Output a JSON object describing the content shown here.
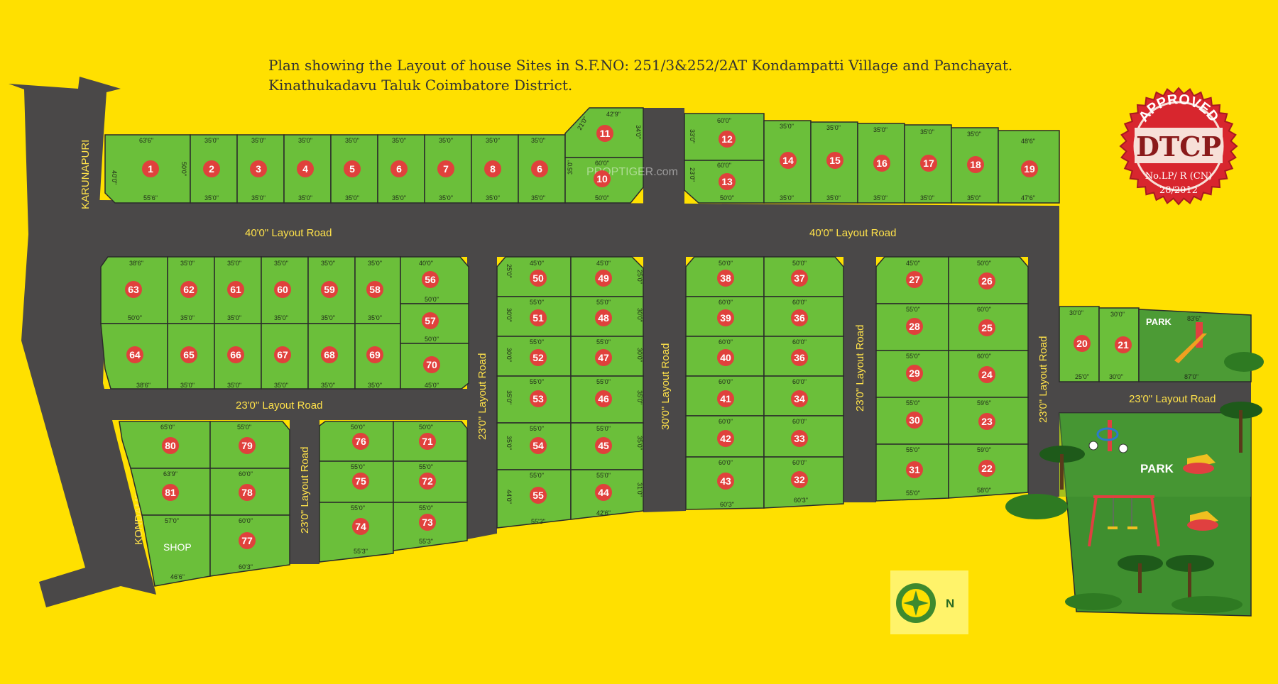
{
  "title": {
    "line1": "Plan showing the Layout of house Sites in S.F.NO: 251/3&252/2AT Kondampatti Village and Panchayat.",
    "line2": "Kinathukadavu Taluk Coimbatore District."
  },
  "seal": {
    "approved": "APPROVED",
    "authority": "DTCP",
    "permit": "No.LP/ R (CN)",
    "year": "28/2012",
    "color": "#D8262E"
  },
  "watermark": "PROPTIGER.com",
  "roads": {
    "karunapuri": "KARUNAPURI",
    "kondampatti": "KONDAMPATTI",
    "main_left": "40'0\" Layout Road",
    "main_right": "40'0\" Layout Road",
    "mid_left": "23'0\" Layout Road",
    "vert_1": "23'0\" Layout Road",
    "vert_2": "23'0\" Layout Road",
    "vert_3": "30'0\" Layout Road",
    "vert_4": "23'0\" Layout Road",
    "vert_5": "23'0\" Layout Road",
    "park_road": "23'0\" Layout Road"
  },
  "shop_label": "SHOP",
  "park_small": "PARK",
  "park_large": "PARK",
  "north": "N",
  "colors": {
    "plot": "#6BBF3A",
    "road": "#4A4848",
    "background": "#FFE000",
    "marker": "#E0413C",
    "park": "#3E8A2E"
  },
  "plots": {
    "top_row": [
      "1",
      "2",
      "3",
      "4",
      "5",
      "6",
      "7",
      "8",
      "6"
    ],
    "plot_11": "11",
    "plot_10": "10",
    "block_a": [
      "12",
      "13"
    ],
    "block_b": [
      "14",
      "15",
      "16",
      "17",
      "18",
      "19"
    ],
    "row_63": [
      "63",
      "62",
      "61",
      "60",
      "59",
      "58"
    ],
    "row_64": [
      "64",
      "65",
      "66",
      "67",
      "68",
      "69"
    ],
    "col_56": [
      "56",
      "57",
      "70"
    ],
    "block_80": [
      "80",
      "79",
      "81",
      "78",
      "77"
    ],
    "block_76": [
      "76",
      "71",
      "75",
      "72",
      "74",
      "73"
    ],
    "block_50": [
      "50",
      "49",
      "51",
      "48",
      "52",
      "47",
      "53",
      "46",
      "54",
      "45",
      "55",
      "44"
    ],
    "block_38": [
      "38",
      "37",
      "39",
      "36",
      "40",
      "36",
      "41",
      "34",
      "42",
      "33",
      "43",
      "32"
    ],
    "block_27": [
      "27",
      "26",
      "28",
      "25",
      "29",
      "24",
      "30",
      "23",
      "31",
      "22"
    ],
    "block_20": [
      "20",
      "21"
    ]
  },
  "dims": {
    "top_row": [
      "63'6\"",
      "35'0\"",
      "35'0\"",
      "35'0\"",
      "35'0\"",
      "35'0\"",
      "35'0\"",
      "35'0\"",
      "35'0\""
    ],
    "top_row_bottom": [
      "55'6\"",
      "35'0\"",
      "35'0\"",
      "35'0\"",
      "35'0\"",
      "35'0\"",
      "35'0\"",
      "35'0\"",
      "35'0\""
    ],
    "p1_left": "40'0\"",
    "p1_right": "50'0\"",
    "p11_top": "42'9\"",
    "p11_left": "21'0\"",
    "p11_right": "34'0\"",
    "p10_top": "60'0\"",
    "p10_bottom": "50'0\"",
    "p10_left": "35'0\"",
    "blk_a_top": "60'0\"",
    "blk_a_mid": "60'0\"",
    "blk_a_bottom": "50'0\"",
    "blk_a_left": "33'0\"",
    "blk_a_left2": "23'0\"",
    "blk_b_top": [
      "35'0\"",
      "35'0\"",
      "35'0\"",
      "35'0\"",
      "35'0\"",
      "48'6\""
    ],
    "blk_b_bottom": [
      "35'0\"",
      "35'0\"",
      "35'0\"",
      "35'0\"",
      "35'0\"",
      "47'6\""
    ],
    "row63_top": [
      "38'6\"",
      "35'0\"",
      "35'0\"",
      "35'0\"",
      "35'0\"",
      "35'0\""
    ],
    "row63_mid": [
      "50'0\"",
      "35'0\"",
      "35'0\"",
      "35'0\"",
      "35'0\"",
      "35'0\""
    ],
    "row64_bottom": [
      "38'6\"",
      "35'0\"",
      "35'0\"",
      "35'0\"",
      "35'0\"",
      "35'0\""
    ],
    "col56": [
      "40'0\"",
      "50'0\"",
      "50'0\"",
      "45'0\""
    ],
    "blk80": [
      "65'0\"",
      "55'0\"",
      "63'9\"",
      "60'0\"",
      "57'0\"",
      "60'0\"",
      "46'6\"",
      "60'3\""
    ],
    "blk76": [
      "50'0\"",
      "50'0\"",
      "55'0\"",
      "55'0\"",
      "55'0\"",
      "55'0\"",
      "55'3\"",
      "55'3\""
    ],
    "blk50": [
      "45'0\"",
      "45'0\"",
      "55'0\"",
      "55'0\"",
      "55'0\"",
      "55'0\"",
      "55'0\"",
      "55'0\"",
      "55'0\"",
      "55'0\"",
      "55'0\"",
      "55'0\"",
      "55'3\"",
      "42'6\""
    ],
    "blk38": [
      "50'0\"",
      "50'0\"",
      "60'0\"",
      "60'0\"",
      "60'0\"",
      "60'0\"",
      "60'0\"",
      "60'0\"",
      "60'0\"",
      "60'0\"",
      "60'0\"",
      "60'0\"",
      "60'3\"",
      "60'3\""
    ],
    "blk27": [
      "45'0\"",
      "50'0\"",
      "55'0\"",
      "60'0\"",
      "55'0\"",
      "60'0\"",
      "55'0\"",
      "59'6\"",
      "55'0\"",
      "59'0\"",
      "55'0\"",
      "58'0\""
    ],
    "blk20": [
      "30'0\"",
      "30'0\"",
      "83'6\"",
      "25'0\"",
      "30'0\"",
      "87'0\""
    ],
    "side_left": [
      "25'0\"",
      "30'0\"",
      "30'0\"",
      "35'0\"",
      "35'0\"",
      "44'0\""
    ],
    "side_right": [
      "25'0\"",
      "30'0\"",
      "30'0\"",
      "35'0\"",
      "35'0\"",
      "31'0\""
    ]
  }
}
